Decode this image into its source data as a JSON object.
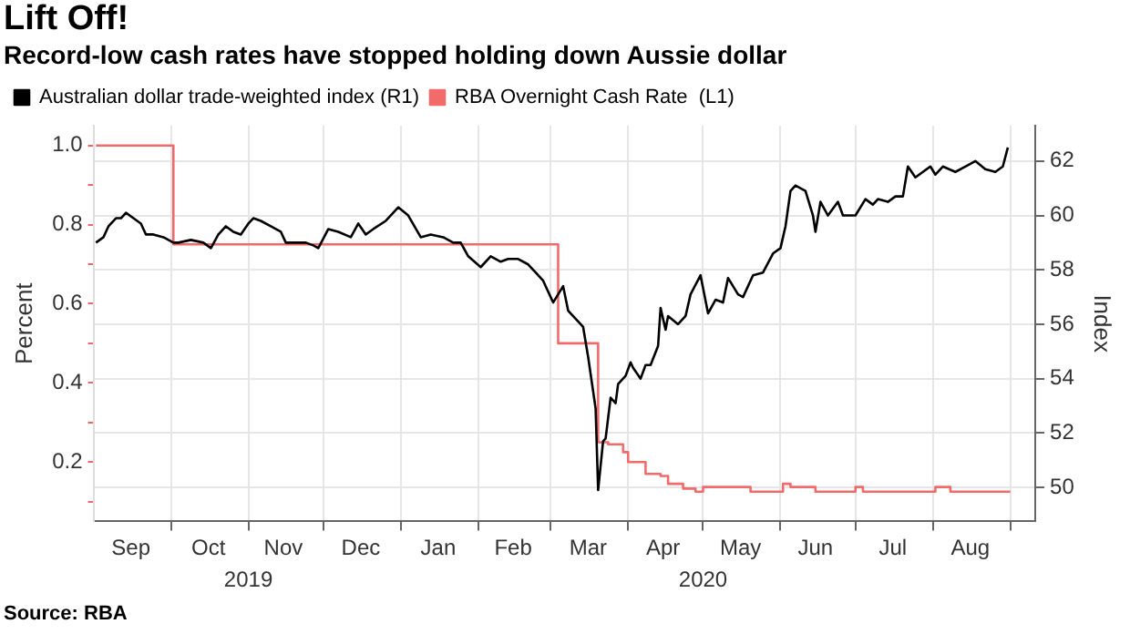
{
  "chart_data": {
    "type": "line",
    "title": "Lift Off!",
    "subtitle": "Record-low cash rates have stopped holding down Aussie dollar",
    "ylabel": "Percent",
    "y2label": "Index",
    "xlim": [
      "2019-08-31",
      "2020-09-11"
    ],
    "xticks": [
      {
        "value": "2019-09-15",
        "label": "Sep"
      },
      {
        "value": "2019-10-01",
        "label": null
      },
      {
        "value": "2019-10-16",
        "label": "Oct"
      },
      {
        "value": "2019-11-01",
        "label": null
      },
      {
        "value": "2019-11-15",
        "label": "Nov"
      },
      {
        "value": "2019-12-01",
        "label": null
      },
      {
        "value": "2019-12-16",
        "label": "Dec"
      },
      {
        "value": "2020-01-01",
        "label": null
      },
      {
        "value": "2020-01-16",
        "label": "Jan"
      },
      {
        "value": "2020-02-01",
        "label": null
      },
      {
        "value": "2020-02-15",
        "label": "Feb"
      },
      {
        "value": "2020-03-01",
        "label": null
      },
      {
        "value": "2020-03-16",
        "label": "Mar"
      },
      {
        "value": "2020-04-01",
        "label": null
      },
      {
        "value": "2020-04-15",
        "label": "Apr"
      },
      {
        "value": "2020-05-01",
        "label": null
      },
      {
        "value": "2020-05-16",
        "label": "May"
      },
      {
        "value": "2020-06-01",
        "label": null
      },
      {
        "value": "2020-06-15",
        "label": "Jun"
      },
      {
        "value": "2020-07-01",
        "label": null
      },
      {
        "value": "2020-07-16",
        "label": "Jul"
      },
      {
        "value": "2020-08-01",
        "label": null
      },
      {
        "value": "2020-08-16",
        "label": "Aug"
      },
      {
        "value": "2020-09-01",
        "label": null
      }
    ],
    "x2lim": [
      "2019-08-31",
      "2020-09-11"
    ],
    "x2ticks": [
      {
        "value": "2019-11-01",
        "label": "2019"
      },
      {
        "value": "2020-05-01",
        "label": "2020"
      }
    ],
    "ylim": [
      0.05,
      1.05
    ],
    "yticks": [
      {
        "value": 0.1,
        "label": null
      },
      {
        "value": 0.2,
        "label": "0.2"
      },
      {
        "value": 0.3,
        "label": null
      },
      {
        "value": 0.4,
        "label": "0.4"
      },
      {
        "value": 0.5,
        "label": null
      },
      {
        "value": 0.6,
        "label": "0.6"
      },
      {
        "value": 0.7,
        "label": null
      },
      {
        "value": 0.8,
        "label": "0.8"
      },
      {
        "value": 0.9,
        "label": null
      },
      {
        "value": 1.0,
        "label": "1.0"
      }
    ],
    "y2lim": [
      48.75,
      63.3
    ],
    "y2ticks": [
      50,
      52,
      54,
      56,
      58,
      60,
      62
    ],
    "grid": true,
    "legend": "top left",
    "marker": "none",
    "line_style": "solid",
    "annotations": [
      "Source: RBA"
    ],
    "series": [
      {
        "name": "Australian dollar trade-weighted index (R1)",
        "color": "#000000",
        "axis": "y2",
        "x": [
          "2019-09-01",
          "2019-09-04",
          "2019-09-06",
          "2019-09-09",
          "2019-09-11",
          "2019-09-13",
          "2019-09-16",
          "2019-09-19",
          "2019-09-21",
          "2019-09-24",
          "2019-09-28",
          "2019-10-02",
          "2019-10-04",
          "2019-10-09",
          "2019-10-14",
          "2019-10-17",
          "2019-10-20",
          "2019-10-23",
          "2019-10-26",
          "2019-10-29",
          "2019-11-01",
          "2019-11-03",
          "2019-11-06",
          "2019-11-10",
          "2019-11-14",
          "2019-11-16",
          "2019-11-20",
          "2019-11-24",
          "2019-11-27",
          "2019-11-29",
          "2019-12-03",
          "2019-12-07",
          "2019-12-12",
          "2019-12-15",
          "2019-12-18",
          "2019-12-21",
          "2019-12-26",
          "2019-12-31",
          "2020-01-04",
          "2020-01-09",
          "2020-01-13",
          "2020-01-18",
          "2020-01-22",
          "2020-01-25",
          "2020-01-28",
          "2020-02-02",
          "2020-02-06",
          "2020-02-10",
          "2020-02-13",
          "2020-02-17",
          "2020-02-21",
          "2020-02-24",
          "2020-02-27",
          "2020-03-02",
          "2020-03-06",
          "2020-03-08",
          "2020-03-12",
          "2020-03-14",
          "2020-03-16",
          "2020-03-19",
          "2020-03-20",
          "2020-03-22",
          "2020-03-23",
          "2020-03-25",
          "2020-03-27",
          "2020-03-28",
          "2020-03-31",
          "2020-04-02",
          "2020-04-03",
          "2020-04-06",
          "2020-04-08",
          "2020-04-10",
          "2020-04-13",
          "2020-04-14",
          "2020-04-16",
          "2020-04-17",
          "2020-04-21",
          "2020-04-24",
          "2020-04-26",
          "2020-04-30",
          "2020-05-03",
          "2020-05-06",
          "2020-05-09",
          "2020-05-11",
          "2020-05-15",
          "2020-05-17",
          "2020-05-21",
          "2020-05-25",
          "2020-05-29",
          "2020-06-01",
          "2020-06-03",
          "2020-06-05",
          "2020-06-07",
          "2020-06-11",
          "2020-06-14",
          "2020-06-15",
          "2020-06-17",
          "2020-06-20",
          "2020-06-24",
          "2020-06-26",
          "2020-07-01",
          "2020-07-05",
          "2020-07-08",
          "2020-07-10",
          "2020-07-14",
          "2020-07-17",
          "2020-07-20",
          "2020-07-22",
          "2020-07-25",
          "2020-07-31",
          "2020-08-02",
          "2020-08-05",
          "2020-08-10",
          "2020-08-14",
          "2020-08-18",
          "2020-08-22",
          "2020-08-26",
          "2020-08-29",
          "2020-08-31"
        ],
        "values": [
          59.0,
          59.2,
          59.6,
          59.9,
          59.9,
          60.1,
          59.9,
          59.7,
          59.3,
          59.3,
          59.2,
          59.0,
          59.0,
          59.1,
          59.0,
          58.8,
          59.3,
          59.6,
          59.4,
          59.3,
          59.7,
          59.9,
          59.8,
          59.6,
          59.4,
          59.0,
          59.0,
          59.0,
          58.9,
          58.8,
          59.5,
          59.4,
          59.2,
          59.7,
          59.3,
          59.5,
          59.8,
          60.3,
          60.0,
          59.2,
          59.3,
          59.2,
          59.0,
          59.0,
          58.5,
          58.1,
          58.5,
          58.3,
          58.4,
          58.4,
          58.2,
          57.9,
          57.6,
          56.8,
          57.4,
          56.5,
          56.1,
          55.9,
          54.8,
          52.9,
          49.9,
          51.7,
          51.8,
          53.3,
          53.1,
          53.8,
          54.1,
          54.6,
          54.4,
          54.0,
          54.5,
          54.5,
          55.2,
          56.6,
          55.8,
          56.3,
          56.0,
          56.3,
          57.1,
          57.8,
          56.4,
          56.9,
          56.8,
          57.7,
          57.1,
          57.0,
          57.8,
          57.9,
          58.6,
          58.8,
          59.6,
          60.9,
          61.1,
          60.9,
          60.0,
          59.4,
          60.5,
          60.0,
          60.5,
          60.0,
          60.0,
          60.6,
          60.4,
          60.6,
          60.5,
          60.7,
          60.7,
          61.8,
          61.4,
          61.8,
          61.5,
          61.8,
          61.6,
          61.8,
          62.0,
          61.7,
          61.6,
          61.8,
          62.5
        ]
      },
      {
        "name": "RBA Overnight Cash Rate  (L1)",
        "color": "#f26b6b",
        "type": "step",
        "axis": "y",
        "x": [
          "2019-09-01",
          "2019-10-02",
          "2020-03-04",
          "2020-03-20",
          "2020-03-24",
          "2020-03-30",
          "2020-04-01",
          "2020-04-08",
          "2020-04-14",
          "2020-04-17",
          "2020-04-23",
          "2020-04-28",
          "2020-05-01",
          "2020-05-18",
          "2020-05-20",
          "2020-05-29",
          "2020-06-02",
          "2020-06-05",
          "2020-06-12",
          "2020-06-15",
          "2020-07-01",
          "2020-07-04",
          "2020-07-31",
          "2020-08-02",
          "2020-08-06",
          "2020-08-08",
          "2020-09-01"
        ],
        "values": [
          1.0,
          0.75,
          0.5,
          0.25,
          0.245,
          0.225,
          0.2,
          0.17,
          0.165,
          0.145,
          0.133,
          0.125,
          0.137,
          0.137,
          0.125,
          0.125,
          0.145,
          0.137,
          0.137,
          0.125,
          0.137,
          0.125,
          0.125,
          0.137,
          0.137,
          0.125,
          0.125
        ]
      }
    ]
  }
}
